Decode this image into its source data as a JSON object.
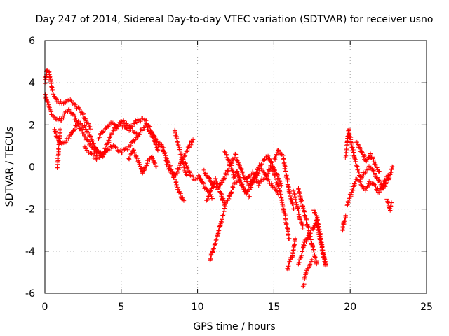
{
  "colors": {
    "series": "#ff0000",
    "axes": "#000000",
    "grid": "#a0a0a0",
    "background": "#ffffff"
  },
  "chart_data": {
    "type": "scatter",
    "title": "Day 247 of 2014, Sidereal Day-to-day VTEC variation (SDTVAR) for receiver usno",
    "xlabel": "GPS time / hours",
    "ylabel": "SDTVAR / TECUs",
    "xlim": [
      0,
      25
    ],
    "ylim": [
      -6,
      6
    ],
    "xticks": [
      0,
      5,
      10,
      15,
      20,
      25
    ],
    "yticks": [
      -6,
      -4,
      -2,
      0,
      2,
      4,
      6
    ],
    "grid": true,
    "marker": "plus",
    "series": [
      {
        "name": "SDTVAR",
        "approximate_tracks": [
          {
            "x": [
              0.0,
              0.15,
              0.3,
              0.5,
              0.8,
              1.2,
              1.6,
              2.0,
              2.4,
              2.7,
              3.0
            ],
            "y": [
              4.0,
              4.6,
              4.4,
              3.6,
              3.1,
              3.0,
              3.2,
              2.9,
              2.6,
              2.2,
              1.8
            ]
          },
          {
            "x": [
              0.0,
              0.2,
              0.4,
              0.7,
              1.0,
              1.3,
              1.6,
              1.9,
              2.2,
              2.6,
              3.0,
              3.4,
              3.8,
              4.2
            ],
            "y": [
              3.5,
              3.0,
              2.6,
              2.3,
              2.2,
              2.5,
              2.7,
              2.4,
              2.0,
              1.5,
              1.0,
              0.6,
              0.6,
              0.9
            ]
          },
          {
            "x": [
              0.6,
              0.8,
              1.0,
              1.3,
              1.6,
              1.9,
              2.2,
              2.6,
              3.0,
              3.4,
              3.8
            ],
            "y": [
              1.8,
              1.4,
              1.2,
              1.2,
              1.4,
              1.8,
              2.1,
              1.9,
              1.4,
              0.8,
              0.5
            ]
          },
          {
            "x": [
              0.8,
              0.85,
              0.9,
              0.95,
              1.0
            ],
            "y": [
              0.0,
              0.3,
              0.8,
              1.3,
              1.8
            ]
          },
          {
            "x": [
              2.6,
              3.0,
              3.4,
              3.8,
              4.2,
              4.6,
              5.0,
              5.5,
              6.0
            ],
            "y": [
              0.9,
              0.6,
              0.4,
              0.6,
              1.3,
              1.9,
              2.0,
              1.8,
              1.6
            ]
          },
          {
            "x": [
              3.5,
              3.9,
              4.3,
              4.7,
              5.1,
              5.6,
              6.1,
              6.5,
              7.0,
              7.4,
              7.8
            ],
            "y": [
              1.4,
              1.8,
              2.1,
              1.9,
              2.2,
              1.9,
              2.2,
              2.3,
              1.7,
              1.1,
              0.9
            ]
          },
          {
            "x": [
              4.0,
              4.5,
              5.0,
              5.4,
              5.8,
              6.2,
              6.6,
              7.0,
              7.4
            ],
            "y": [
              0.8,
              1.0,
              0.7,
              0.9,
              1.2,
              1.6,
              2.0,
              1.5,
              0.8
            ]
          },
          {
            "x": [
              5.5,
              5.8,
              6.1,
              6.4,
              6.7,
              7.0,
              7.3
            ],
            "y": [
              0.4,
              0.8,
              0.3,
              -0.3,
              0.2,
              0.5,
              0.0
            ]
          },
          {
            "x": [
              7.3,
              7.6,
              7.9,
              8.2,
              8.5,
              8.8,
              9.1
            ],
            "y": [
              1.0,
              1.1,
              0.5,
              0.0,
              -0.6,
              -1.2,
              -1.6
            ]
          },
          {
            "x": [
              7.9,
              8.2,
              8.5,
              8.8,
              9.1,
              9.4,
              9.7
            ],
            "y": [
              0.3,
              -0.2,
              -0.4,
              0.0,
              0.5,
              0.9,
              1.3
            ]
          },
          {
            "x": [
              8.5,
              8.7,
              8.9,
              9.1,
              9.3
            ],
            "y": [
              1.8,
              1.2,
              0.6,
              0.0,
              -0.4
            ]
          },
          {
            "x": [
              9.2,
              9.5,
              9.8,
              10.1,
              10.4,
              10.7,
              11.0
            ],
            "y": [
              0.2,
              -0.3,
              -0.6,
              -0.4,
              -0.9,
              -1.2,
              -1.5
            ]
          },
          {
            "x": [
              10.8,
              10.9,
              11.0,
              11.1,
              11.2,
              11.4,
              11.6,
              11.8
            ],
            "y": [
              -4.4,
              -4.2,
              -4.0,
              -3.8,
              -3.5,
              -3.0,
              -2.5,
              -1.8
            ]
          },
          {
            "x": [
              10.6,
              10.9,
              11.2,
              11.5,
              11.8,
              12.1,
              12.4,
              12.7,
              13.0,
              13.4
            ],
            "y": [
              -1.6,
              -1.0,
              -0.6,
              -1.2,
              -1.8,
              -1.4,
              -0.8,
              -0.6,
              -1.0,
              -1.4
            ]
          },
          {
            "x": [
              10.4,
              10.7,
              11.0,
              11.3,
              11.6,
              11.9,
              12.2,
              12.5
            ],
            "y": [
              -0.2,
              -0.5,
              -0.9,
              -1.0,
              -0.7,
              -0.3,
              0.2,
              0.6
            ]
          },
          {
            "x": [
              11.8,
              12.0,
              12.2,
              12.4,
              12.6
            ],
            "y": [
              0.7,
              0.4,
              0.0,
              -0.5,
              -0.2
            ]
          },
          {
            "x": [
              12.5,
              12.8,
              13.1,
              13.4,
              13.7,
              14.0,
              14.3,
              14.6,
              14.9,
              15.2,
              15.5
            ],
            "y": [
              0.4,
              0.0,
              -0.6,
              -0.9,
              -0.5,
              0.0,
              0.3,
              0.5,
              0.1,
              -0.4,
              -0.9
            ]
          },
          {
            "x": [
              12.6,
              12.9,
              13.2,
              13.5,
              13.8,
              14.1,
              14.4,
              14.7,
              15.0,
              15.3
            ],
            "y": [
              -0.3,
              -0.8,
              -1.2,
              -0.9,
              -0.5,
              -0.1,
              -0.3,
              -0.7,
              -1.0,
              -1.3
            ]
          },
          {
            "x": [
              13.2,
              13.6,
              14.0,
              14.4,
              14.8,
              15.1,
              15.4,
              15.7,
              16.0
            ],
            "y": [
              -0.6,
              -0.3,
              -0.8,
              -0.5,
              0.0,
              -0.5,
              -1.2,
              -2.2,
              -3.4
            ]
          },
          {
            "x": [
              15.0,
              15.3,
              15.6,
              15.8,
              16.0,
              16.3
            ],
            "y": [
              0.3,
              0.8,
              0.5,
              -0.3,
              -1.2,
              -2.0
            ]
          },
          {
            "x": [
              15.9,
              16.0,
              16.2,
              16.4
            ],
            "y": [
              -4.9,
              -4.6,
              -4.2,
              -3.4
            ]
          },
          {
            "x": [
              16.3,
              16.5,
              16.7,
              16.9
            ],
            "y": [
              -1.2,
              -1.8,
              -2.4,
              -2.9
            ]
          },
          {
            "x": [
              16.6,
              16.8,
              17.0,
              17.2,
              17.4,
              17.6,
              17.8,
              18.0,
              18.2,
              18.4
            ],
            "y": [
              -4.6,
              -4.2,
              -3.6,
              -3.4,
              -3.1,
              -2.9,
              -2.5,
              -3.4,
              -4.0,
              -4.6
            ]
          },
          {
            "x": [
              16.6,
              16.8,
              17.0,
              17.2,
              17.4,
              17.6,
              17.8
            ],
            "y": [
              -1.0,
              -1.6,
              -2.2,
              -2.8,
              -3.4,
              -4.0,
              -4.6
            ]
          },
          {
            "x": [
              16.9,
              17.0,
              17.1,
              17.3,
              17.5
            ],
            "y": [
              -5.7,
              -5.4,
              -5.0,
              -4.8,
              -4.4
            ]
          },
          {
            "x": [
              17.6,
              17.8,
              18.0,
              18.2,
              18.4
            ],
            "y": [
              -2.0,
              -2.3,
              -3.0,
              -4.1,
              -4.7
            ]
          },
          {
            "x": [
              19.5,
              19.6,
              19.7
            ],
            "y": [
              -3.0,
              -2.6,
              -2.3
            ]
          },
          {
            "x": [
              19.7,
              19.9,
              20.1,
              20.3,
              20.5,
              20.7,
              21.0,
              21.3,
              21.6,
              21.9,
              22.2,
              22.5,
              22.8
            ],
            "y": [
              0.5,
              1.8,
              1.0,
              0.4,
              -0.1,
              -0.5,
              -0.2,
              0.0,
              -0.3,
              -0.7,
              -1.0,
              -0.6,
              0.0
            ]
          },
          {
            "x": [
              19.8,
              20.1,
              20.4,
              20.7,
              21.0,
              21.3,
              21.6,
              21.9,
              22.2,
              22.5
            ],
            "y": [
              -1.8,
              -1.2,
              -0.6,
              -0.8,
              -1.1,
              -0.7,
              -0.9,
              -1.2,
              -0.8,
              -0.4
            ]
          },
          {
            "x": [
              20.4,
              20.7,
              21.0,
              21.3,
              21.6,
              21.9
            ],
            "y": [
              1.2,
              0.8,
              0.3,
              0.6,
              0.2,
              -0.2
            ]
          },
          {
            "x": [
              22.4,
              22.5,
              22.6,
              22.7
            ],
            "y": [
              -1.6,
              -1.8,
              -2.0,
              -1.7
            ]
          }
        ]
      }
    ]
  }
}
